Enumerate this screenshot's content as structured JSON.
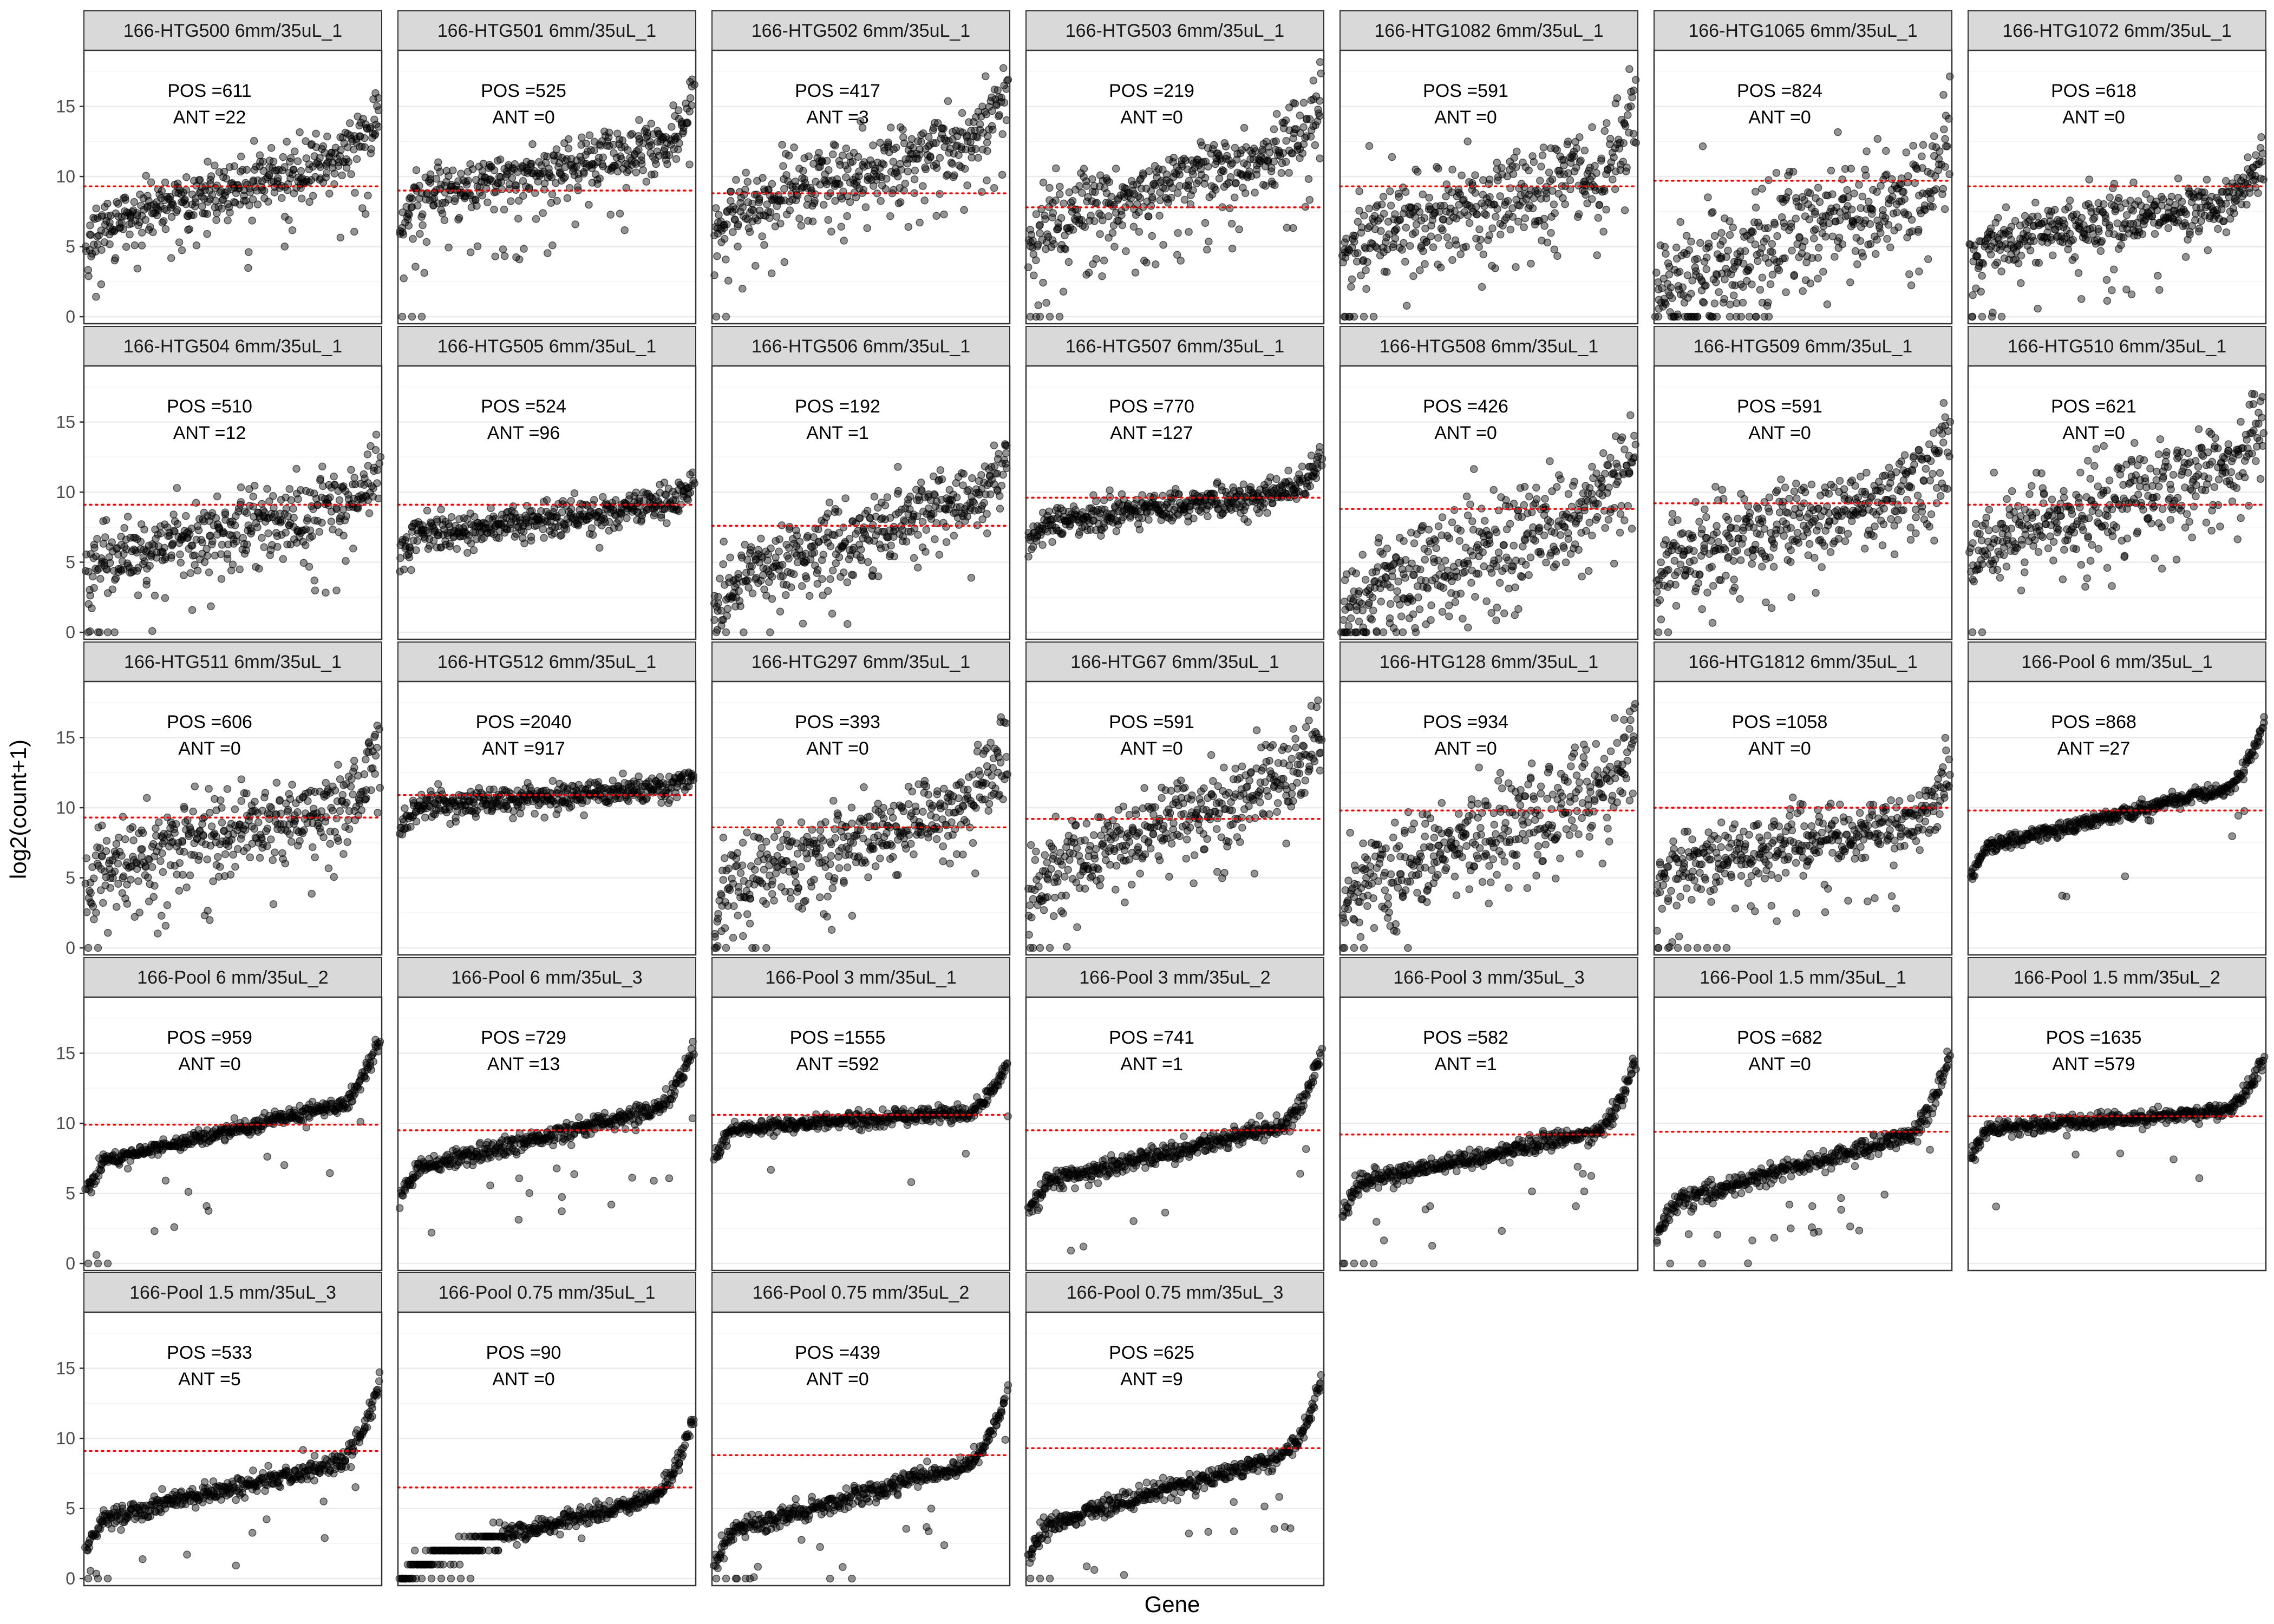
{
  "chart_data": {
    "type": "scatter",
    "xlabel": "Gene",
    "ylabel": "log2(count+1)",
    "ylim": [
      -0.5,
      19
    ],
    "y_ticks": [
      0,
      5,
      10,
      15
    ],
    "grid": true,
    "annotation_labels": {
      "pos": "POS =",
      "ant": "ANT ="
    },
    "colors": {
      "points": "#000000",
      "threshold": "#ff0000",
      "strip": "#d9d9d9",
      "border": "#333333",
      "grid": "#ebebeb"
    },
    "panels": [
      {
        "title": "166-HTG500 6mm/35uL_1",
        "pos": "611",
        "ant": "22",
        "threshold": 9.3,
        "profile": {
          "start": 6.3,
          "end": 12.0,
          "noise": 1.0,
          "lowtail": 0.05,
          "zeros": 0,
          "tailUp": 2.5
        }
      },
      {
        "title": "166-HTG501 6mm/35uL_1",
        "pos": "525",
        "ant": "0",
        "threshold": 9.0,
        "profile": {
          "start": 8.3,
          "end": 12.5,
          "noise": 1.0,
          "lowtail": 0.06,
          "zeros": 3,
          "tailUp": 2.5
        }
      },
      {
        "title": "166-HTG502 6mm/35uL_1",
        "pos": "417",
        "ant": "3",
        "threshold": 8.8,
        "profile": {
          "start": 7.2,
          "end": 13.5,
          "noise": 1.2,
          "lowtail": 0.04,
          "zeros": 2,
          "tailUp": 3.0
        }
      },
      {
        "title": "166-HTG503 6mm/35uL_1",
        "pos": "219",
        "ant": "0",
        "threshold": 7.8,
        "profile": {
          "start": 6.5,
          "end": 12.5,
          "noise": 1.2,
          "lowtail": 0.07,
          "zeros": 4,
          "tailUp": 3.0
        }
      },
      {
        "title": "166-HTG1082 6mm/35uL_1",
        "pos": "591",
        "ant": "0",
        "threshold": 9.3,
        "profile": {
          "start": 5.5,
          "end": 11.0,
          "noise": 1.8,
          "lowtail": 0.05,
          "zeros": 4,
          "tailUp": 3.0
        }
      },
      {
        "title": "166-HTG1065 6mm/35uL_1",
        "pos": "824",
        "ant": "0",
        "threshold": 9.7,
        "profile": {
          "start": 2.5,
          "end": 9.5,
          "noise": 2.2,
          "lowtail": 0.04,
          "zeros": 18,
          "tailUp": 3.0
        }
      },
      {
        "title": "166-HTG1072 6mm/35uL_1",
        "pos": "618",
        "ant": "0",
        "threshold": 9.3,
        "profile": {
          "start": 5.0,
          "end": 8.5,
          "noise": 1.0,
          "lowtail": 0.04,
          "zeros": 4,
          "tailUp": 3.0
        }
      },
      {
        "title": "166-HTG504 6mm/35uL_1",
        "pos": "510",
        "ant": "12",
        "threshold": 9.1,
        "profile": {
          "start": 5.0,
          "end": 9.5,
          "noise": 1.3,
          "lowtail": 0.05,
          "zeros": 3,
          "tailUp": 2.5
        }
      },
      {
        "title": "166-HTG505 6mm/35uL_1",
        "pos": "524",
        "ant": "96",
        "threshold": 9.1,
        "profile": {
          "start": 6.8,
          "end": 9.3,
          "noise": 0.6,
          "lowtail": 0.0,
          "zeros": 0,
          "tailUp": 1.2
        }
      },
      {
        "title": "166-HTG506 6mm/35uL_1",
        "pos": "192",
        "ant": "1",
        "threshold": 7.6,
        "profile": {
          "start": 3.5,
          "end": 10.0,
          "noise": 1.3,
          "lowtail": 0.04,
          "zeros": 2,
          "tailUp": 2.5
        }
      },
      {
        "title": "166-HTG507 6mm/35uL_1",
        "pos": "770",
        "ant": "127",
        "threshold": 9.6,
        "profile": {
          "start": 7.8,
          "end": 10.0,
          "noise": 0.6,
          "lowtail": 0.0,
          "zeros": 0,
          "tailUp": 2.5
        }
      },
      {
        "title": "166-HTG508 6mm/35uL_1",
        "pos": "426",
        "ant": "0",
        "threshold": 8.8,
        "profile": {
          "start": 2.5,
          "end": 10.0,
          "noise": 1.8,
          "lowtail": 0.05,
          "zeros": 12,
          "tailUp": 3.0
        }
      },
      {
        "title": "166-HTG509 6mm/35uL_1",
        "pos": "591",
        "ant": "0",
        "threshold": 9.2,
        "profile": {
          "start": 5.0,
          "end": 11.0,
          "noise": 1.6,
          "lowtail": 0.04,
          "zeros": 2,
          "tailUp": 3.0
        }
      },
      {
        "title": "166-HTG510 6mm/35uL_1",
        "pos": "621",
        "ant": "0",
        "threshold": 9.1,
        "profile": {
          "start": 6.0,
          "end": 12.5,
          "noise": 1.6,
          "lowtail": 0.04,
          "zeros": 2,
          "tailUp": 3.5
        }
      },
      {
        "title": "166-HTG511 6mm/35uL_1",
        "pos": "606",
        "ant": "0",
        "threshold": 9.3,
        "profile": {
          "start": 5.5,
          "end": 11.0,
          "noise": 1.4,
          "lowtail": 0.06,
          "zeros": 2,
          "tailUp": 3.0
        }
      },
      {
        "title": "166-HTG512 6mm/35uL_1",
        "pos": "2040",
        "ant": "917",
        "threshold": 10.9,
        "profile": {
          "start": 10.0,
          "end": 11.5,
          "noise": 0.5,
          "lowtail": 0.0,
          "zeros": 0,
          "tailUp": 0.8
        }
      },
      {
        "title": "166-HTG297 6mm/35uL_1",
        "pos": "393",
        "ant": "0",
        "threshold": 8.6,
        "profile": {
          "start": 4.0,
          "end": 11.5,
          "noise": 1.5,
          "lowtail": 0.04,
          "zeros": 2,
          "tailUp": 3.0
        }
      },
      {
        "title": "166-HTG67 6mm/35uL_1",
        "pos": "591",
        "ant": "0",
        "threshold": 9.2,
        "profile": {
          "start": 5.0,
          "end": 13.0,
          "noise": 1.5,
          "lowtail": 0.04,
          "zeros": 3,
          "tailUp": 3.0
        }
      },
      {
        "title": "166-HTG128 6mm/35uL_1",
        "pos": "934",
        "ant": "0",
        "threshold": 9.8,
        "profile": {
          "start": 4.0,
          "end": 12.5,
          "noise": 1.7,
          "lowtail": 0.04,
          "zeros": 3,
          "tailUp": 3.0
        }
      },
      {
        "title": "166-HTG1812 6mm/35uL_1",
        "pos": "1058",
        "ant": "0",
        "threshold": 10.0,
        "profile": {
          "start": 5.5,
          "end": 9.5,
          "noise": 1.2,
          "lowtail": 0.04,
          "zeros": 8,
          "tailUp": 3.5
        }
      },
      {
        "title": "166-Pool 6 mm/35uL_1",
        "pos": "868",
        "ant": "27",
        "threshold": 9.8,
        "profile": {
          "start": 7.0,
          "end": 12.0,
          "noise": 0.4,
          "lowtail": 0.02,
          "zeros": 0,
          "tailUp": 4.0,
          "smooth": true
        }
      },
      {
        "title": "166-Pool 6 mm/35uL_2",
        "pos": "959",
        "ant": "0",
        "threshold": 9.9,
        "profile": {
          "start": 7.0,
          "end": 12.0,
          "noise": 0.4,
          "lowtail": 0.03,
          "zeros": 3,
          "tailUp": 4.0,
          "smooth": true
        }
      },
      {
        "title": "166-Pool 6 mm/35uL_3",
        "pos": "729",
        "ant": "13",
        "threshold": 9.5,
        "profile": {
          "start": 6.5,
          "end": 11.5,
          "noise": 0.5,
          "lowtail": 0.03,
          "zeros": 0,
          "tailUp": 4.0,
          "smooth": true
        }
      },
      {
        "title": "166-Pool 3 mm/35uL_1",
        "pos": "1555",
        "ant": "592",
        "threshold": 10.6,
        "profile": {
          "start": 9.5,
          "end": 11.0,
          "noise": 0.4,
          "lowtail": 0.01,
          "zeros": 0,
          "tailUp": 3.5,
          "smooth": true
        }
      },
      {
        "title": "166-Pool 3 mm/35uL_2",
        "pos": "741",
        "ant": "1",
        "threshold": 9.5,
        "profile": {
          "start": 5.5,
          "end": 10.5,
          "noise": 0.5,
          "lowtail": 0.03,
          "zeros": 0,
          "tailUp": 4.5,
          "smooth": true
        }
      },
      {
        "title": "166-Pool 3 mm/35uL_3",
        "pos": "582",
        "ant": "1",
        "threshold": 9.2,
        "profile": {
          "start": 5.5,
          "end": 10.0,
          "noise": 0.5,
          "lowtail": 0.03,
          "zeros": 4,
          "tailUp": 4.5,
          "smooth": true
        }
      },
      {
        "title": "166-Pool 1.5 mm/35uL_1",
        "pos": "682",
        "ant": "0",
        "threshold": 9.4,
        "profile": {
          "start": 4.0,
          "end": 10.0,
          "noise": 0.5,
          "lowtail": 0.03,
          "zeros": 0,
          "tailUp": 5.0,
          "smooth": true
        }
      },
      {
        "title": "166-Pool 1.5 mm/35uL_2",
        "pos": "1635",
        "ant": "579",
        "threshold": 10.5,
        "profile": {
          "start": 9.5,
          "end": 11.0,
          "noise": 0.4,
          "lowtail": 0.01,
          "zeros": 0,
          "tailUp": 3.5,
          "smooth": true
        }
      },
      {
        "title": "166-Pool 1.5 mm/35uL_3",
        "pos": "533",
        "ant": "5",
        "threshold": 9.1,
        "profile": {
          "start": 4.0,
          "end": 9.0,
          "noise": 0.5,
          "lowtail": 0.03,
          "zeros": 3,
          "tailUp": 5.0,
          "smooth": true
        }
      },
      {
        "title": "166-Pool 0.75 mm/35uL_1",
        "pos": "90",
        "ant": "0",
        "threshold": 6.5,
        "profile": {
          "start": 1.0,
          "end": 6.5,
          "noise": 0.5,
          "lowtail": 0.0,
          "zeros": 8,
          "tailUp": 5.0,
          "smooth": true,
          "banded": true
        }
      },
      {
        "title": "166-Pool 0.75 mm/35uL_2",
        "pos": "439",
        "ant": "0",
        "threshold": 8.8,
        "profile": {
          "start": 3.0,
          "end": 9.0,
          "noise": 0.5,
          "lowtail": 0.03,
          "zeros": 4,
          "tailUp": 4.5,
          "smooth": true
        }
      },
      {
        "title": "166-Pool 0.75 mm/35uL_3",
        "pos": "625",
        "ant": "9",
        "threshold": 9.3,
        "profile": {
          "start": 3.5,
          "end": 9.5,
          "noise": 0.5,
          "lowtail": 0.03,
          "zeros": 3,
          "tailUp": 4.5,
          "smooth": true
        }
      }
    ]
  }
}
